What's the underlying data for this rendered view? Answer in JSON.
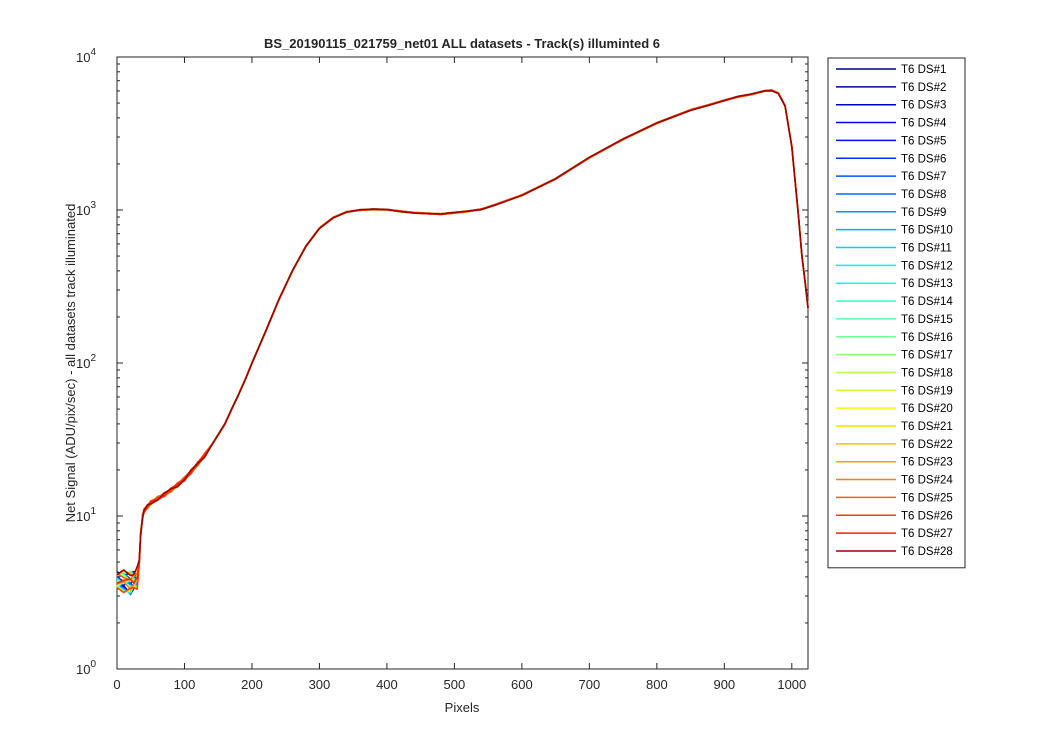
{
  "chart_data": {
    "type": "line",
    "title": "BS_20190115_021759_net01 ALL datasets - Track(s) illuminted 6",
    "xlabel": "Pixels",
    "ylabel": "Net Signal (ADU/pix/sec) - all datasets track illuminated",
    "xlim": [
      0,
      1024
    ],
    "ylim": [
      1,
      10000
    ],
    "yscale": "log",
    "grid": false,
    "legend_position": "outside-right",
    "x_ticks": [
      "0",
      "100",
      "200",
      "300",
      "400",
      "500",
      "600",
      "700",
      "800",
      "900",
      "1000"
    ],
    "x_tick_values": [
      0,
      100,
      200,
      300,
      400,
      500,
      600,
      700,
      800,
      900,
      1000
    ],
    "y_ticks": [
      {
        "value": 1,
        "base": "10",
        "exp": "0"
      },
      {
        "value": 10,
        "base": "10",
        "exp": "1"
      },
      {
        "value": 100,
        "base": "10",
        "exp": "2"
      },
      {
        "value": 1000,
        "base": "10",
        "exp": "3"
      },
      {
        "value": 10000,
        "base": "10",
        "exp": "4"
      }
    ],
    "x": [
      0,
      10,
      20,
      25,
      30,
      33,
      35,
      38,
      40,
      45,
      50,
      60,
      70,
      80,
      90,
      100,
      110,
      120,
      130,
      140,
      150,
      160,
      170,
      180,
      190,
      200,
      220,
      240,
      260,
      280,
      300,
      320,
      340,
      360,
      380,
      400,
      420,
      440,
      460,
      480,
      500,
      520,
      540,
      560,
      600,
      650,
      700,
      750,
      800,
      850,
      880,
      900,
      920,
      940,
      960,
      970,
      980,
      990,
      1000,
      1010,
      1015,
      1020,
      1024
    ],
    "values": [
      3.8,
      3.8,
      3.7,
      3.8,
      4.0,
      5.0,
      7.5,
      10.0,
      10.8,
      11.5,
      12.2,
      13.0,
      13.8,
      14.8,
      16.0,
      17.5,
      19.5,
      22.0,
      25.0,
      29.0,
      34.0,
      40.0,
      50.0,
      62.0,
      78.0,
      100.0,
      160.0,
      260.0,
      400.0,
      580.0,
      760.0,
      890.0,
      970.0,
      1000.0,
      1010.0,
      1005.0,
      980.0,
      960.0,
      950.0,
      940.0,
      960.0,
      980.0,
      1010.0,
      1080.0,
      1250.0,
      1600.0,
      2200.0,
      2900.0,
      3700.0,
      4500.0,
      4900.0,
      5200.0,
      5500.0,
      5700.0,
      6000.0,
      6050.0,
      5800.0,
      4800.0,
      2600.0,
      900.0,
      500.0,
      330.0,
      230.0
    ],
    "series": [
      {
        "name": "T6 DS#1",
        "color": "#00008f"
      },
      {
        "name": "T6 DS#2",
        "color": "#0000af"
      },
      {
        "name": "T6 DS#3",
        "color": "#0000cf"
      },
      {
        "name": "T6 DS#4",
        "color": "#0000ef"
      },
      {
        "name": "T6 DS#5",
        "color": "#0010ff"
      },
      {
        "name": "T6 DS#6",
        "color": "#0030ff"
      },
      {
        "name": "T6 DS#7",
        "color": "#0050ff"
      },
      {
        "name": "T6 DS#8",
        "color": "#0070ff"
      },
      {
        "name": "T6 DS#9",
        "color": "#0090ff"
      },
      {
        "name": "T6 DS#10",
        "color": "#00b0ff"
      },
      {
        "name": "T6 DS#11",
        "color": "#00d0ff"
      },
      {
        "name": "T6 DS#12",
        "color": "#00f0ff"
      },
      {
        "name": "T6 DS#13",
        "color": "#10ffef"
      },
      {
        "name": "T6 DS#14",
        "color": "#30ffcf"
      },
      {
        "name": "T6 DS#15",
        "color": "#50ffaf"
      },
      {
        "name": "T6 DS#16",
        "color": "#70ff8f"
      },
      {
        "name": "T6 DS#17",
        "color": "#90ff70"
      },
      {
        "name": "T6 DS#18",
        "color": "#b0ff50"
      },
      {
        "name": "T6 DS#19",
        "color": "#d0ff30"
      },
      {
        "name": "T6 DS#20",
        "color": "#f0ff10"
      },
      {
        "name": "T6 DS#21",
        "color": "#ffdf00"
      },
      {
        "name": "T6 DS#22",
        "color": "#ffbf00"
      },
      {
        "name": "T6 DS#23",
        "color": "#ff9f00"
      },
      {
        "name": "T6 DS#24",
        "color": "#ff7f00"
      },
      {
        "name": "T6 DS#25",
        "color": "#ff5f00"
      },
      {
        "name": "T6 DS#26",
        "color": "#ff3f00"
      },
      {
        "name": "T6 DS#27",
        "color": "#ff1f00"
      },
      {
        "name": "T6 DS#28",
        "color": "#9f0000"
      }
    ]
  }
}
